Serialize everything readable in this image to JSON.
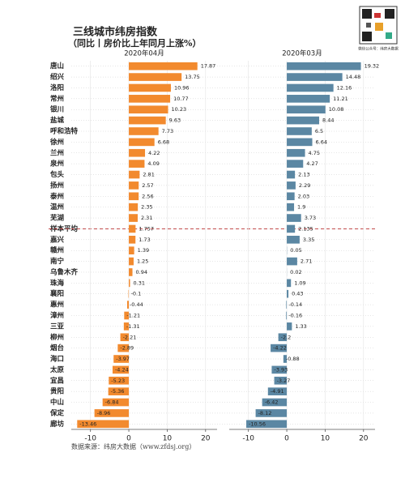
{
  "chart_data": {
    "type": "bar",
    "orientation": "horizontal",
    "title": "三线城市纬房指数",
    "subtitle": "（同比丨房价比上年同月上涨%）",
    "source": "数据来源：纬房大数据（www.zfdsj.org）",
    "qr_caption": "微信公众号：纬房大数据",
    "categories": [
      "唐山",
      "绍兴",
      "洛阳",
      "常州",
      "银川",
      "盐城",
      "呼和浩特",
      "徐州",
      "兰州",
      "泉州",
      "包头",
      "扬州",
      "泰州",
      "温州",
      "芜湖",
      "样本平均",
      "嘉兴",
      "赣州",
      "南宁",
      "乌鲁木齐",
      "珠海",
      "襄阳",
      "惠州",
      "漳州",
      "三亚",
      "柳州",
      "烟台",
      "海口",
      "太原",
      "宜昌",
      "贵阳",
      "中山",
      "保定",
      "廊坊"
    ],
    "series": [
      {
        "name": "2020年04月",
        "color": "#f28a2e",
        "values": [
          17.87,
          13.75,
          10.96,
          10.77,
          10.23,
          9.63,
          7.73,
          6.68,
          4.22,
          4.09,
          2.81,
          2.57,
          2.56,
          2.35,
          2.31,
          1.757,
          1.73,
          1.39,
          1.25,
          0.94,
          0.31,
          -0.1,
          -0.44,
          -1.21,
          -1.31,
          -2.21,
          -2.89,
          -3.97,
          -4.24,
          -5.23,
          -5.36,
          -6.84,
          -8.96,
          -13.46
        ]
      },
      {
        "name": "2020年03月",
        "color": "#5b87a3",
        "values": [
          19.32,
          14.48,
          12.16,
          11.21,
          10.08,
          8.44,
          6.5,
          6.64,
          4.75,
          4.27,
          2.13,
          2.29,
          2.03,
          1.9,
          3.73,
          2.135,
          3.35,
          0.05,
          2.71,
          0.02,
          1.09,
          0.43,
          -0.14,
          -0.16,
          1.33,
          -2.2,
          -4.22,
          -0.88,
          -3.93,
          -3.27,
          -4.91,
          -6.42,
          -8.12,
          -10.56
        ]
      }
    ],
    "xlim": [
      -15,
      23
    ],
    "xticks": [
      -10,
      0,
      10,
      20
    ],
    "grid": true
  }
}
